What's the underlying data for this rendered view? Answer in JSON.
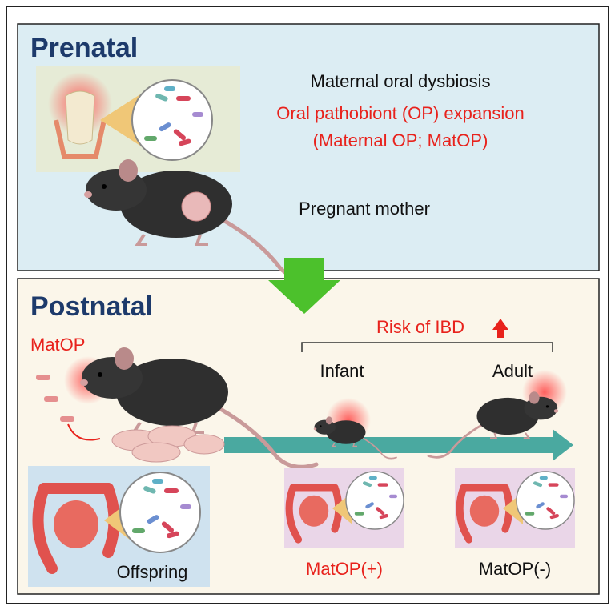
{
  "prenatal": {
    "title": "Prenatal",
    "lines": [
      "Maternal oral dysbiosis",
      "Oral pathobiont (OP) expansion",
      "(Maternal OP; MatOP)"
    ],
    "mother_label": "Pregnant mother"
  },
  "postnatal": {
    "title": "Postnatal",
    "matop_label": "MatOP",
    "risk": "Risk of IBD",
    "stages": [
      {
        "label": "Infant",
        "status": "MatOP(+)"
      },
      {
        "label": "Adult",
        "status": "MatOP(-)"
      }
    ],
    "offspring_label": "Offspring"
  }
}
